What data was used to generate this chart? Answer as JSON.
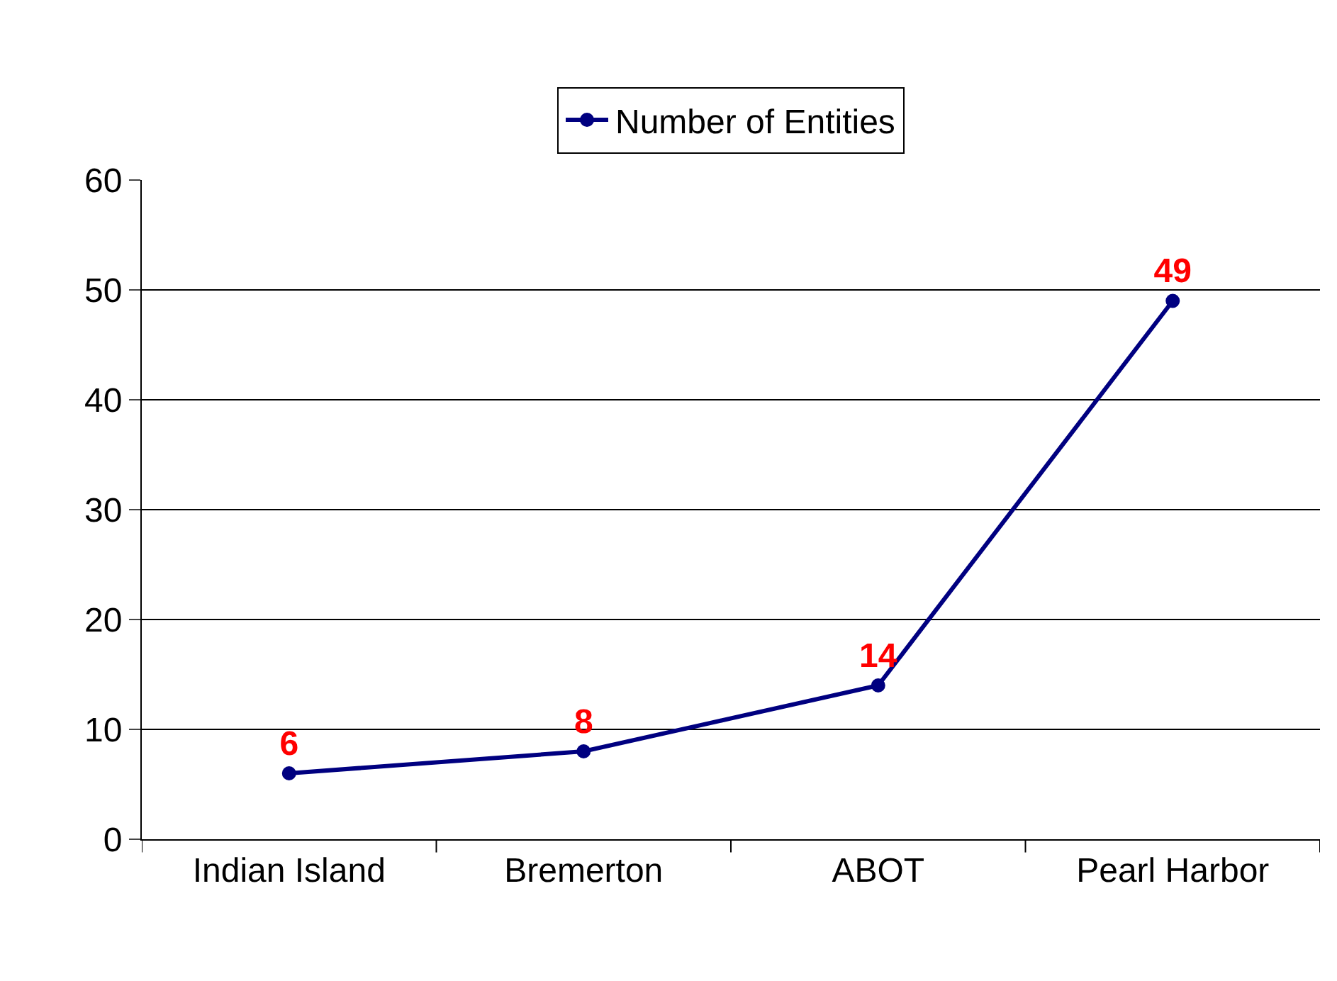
{
  "chart_data": {
    "type": "line",
    "categories": [
      "Indian Island",
      "Bremerton",
      "ABOT",
      "Pearl Harbor"
    ],
    "series": [
      {
        "name": "Number of Entities",
        "color": "#000080",
        "values": [
          6,
          8,
          14,
          49
        ]
      }
    ],
    "ylim": [
      0,
      60
    ],
    "yticks": [
      0,
      10,
      20,
      30,
      40,
      50,
      60
    ],
    "grid": "y",
    "legend": "top",
    "marker": "circle",
    "line_style": "solid",
    "data_labels": true
  }
}
